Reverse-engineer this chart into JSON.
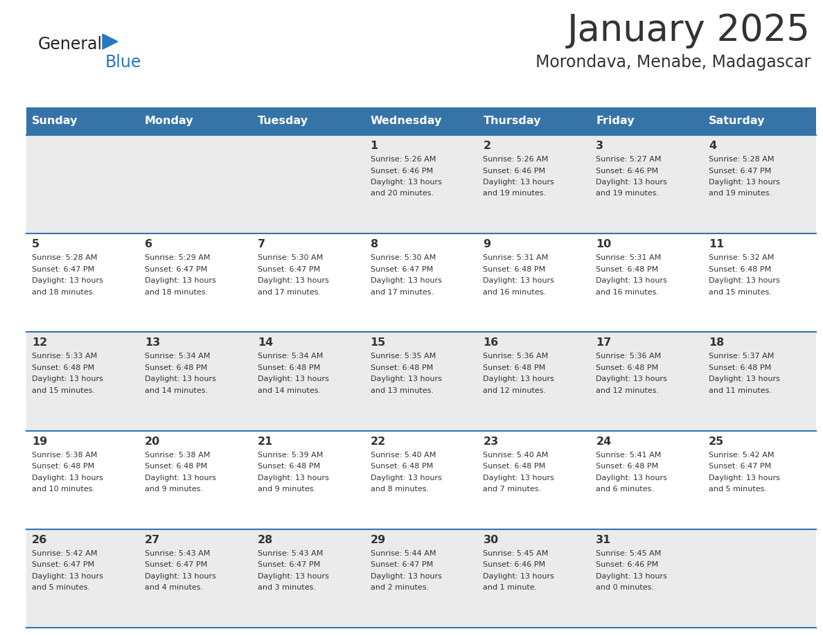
{
  "title": "January 2025",
  "subtitle": "Morondava, Menabe, Madagascar",
  "header_bg_color": "#3674a8",
  "header_text_color": "#ffffff",
  "weekdays": [
    "Sunday",
    "Monday",
    "Tuesday",
    "Wednesday",
    "Thursday",
    "Friday",
    "Saturday"
  ],
  "row_bg_even": "#ebebeb",
  "row_bg_odd": "#ffffff",
  "separator_color": "#3674a8",
  "text_color": "#333333",
  "day_number_color": "#333333",
  "logo_general_color": "#222222",
  "logo_blue_color": "#2878c0",
  "calendar": [
    [
      {
        "day": null
      },
      {
        "day": null
      },
      {
        "day": null
      },
      {
        "day": 1,
        "sunrise": "5:26 AM",
        "sunset": "6:46 PM",
        "daylight": "13 hours and 20 minutes"
      },
      {
        "day": 2,
        "sunrise": "5:26 AM",
        "sunset": "6:46 PM",
        "daylight": "13 hours and 19 minutes"
      },
      {
        "day": 3,
        "sunrise": "5:27 AM",
        "sunset": "6:46 PM",
        "daylight": "13 hours and 19 minutes"
      },
      {
        "day": 4,
        "sunrise": "5:28 AM",
        "sunset": "6:47 PM",
        "daylight": "13 hours and 19 minutes"
      }
    ],
    [
      {
        "day": 5,
        "sunrise": "5:28 AM",
        "sunset": "6:47 PM",
        "daylight": "13 hours and 18 minutes"
      },
      {
        "day": 6,
        "sunrise": "5:29 AM",
        "sunset": "6:47 PM",
        "daylight": "13 hours and 18 minutes"
      },
      {
        "day": 7,
        "sunrise": "5:30 AM",
        "sunset": "6:47 PM",
        "daylight": "13 hours and 17 minutes"
      },
      {
        "day": 8,
        "sunrise": "5:30 AM",
        "sunset": "6:47 PM",
        "daylight": "13 hours and 17 minutes"
      },
      {
        "day": 9,
        "sunrise": "5:31 AM",
        "sunset": "6:48 PM",
        "daylight": "13 hours and 16 minutes"
      },
      {
        "day": 10,
        "sunrise": "5:31 AM",
        "sunset": "6:48 PM",
        "daylight": "13 hours and 16 minutes"
      },
      {
        "day": 11,
        "sunrise": "5:32 AM",
        "sunset": "6:48 PM",
        "daylight": "13 hours and 15 minutes"
      }
    ],
    [
      {
        "day": 12,
        "sunrise": "5:33 AM",
        "sunset": "6:48 PM",
        "daylight": "13 hours and 15 minutes"
      },
      {
        "day": 13,
        "sunrise": "5:34 AM",
        "sunset": "6:48 PM",
        "daylight": "13 hours and 14 minutes"
      },
      {
        "day": 14,
        "sunrise": "5:34 AM",
        "sunset": "6:48 PM",
        "daylight": "13 hours and 14 minutes"
      },
      {
        "day": 15,
        "sunrise": "5:35 AM",
        "sunset": "6:48 PM",
        "daylight": "13 hours and 13 minutes"
      },
      {
        "day": 16,
        "sunrise": "5:36 AM",
        "sunset": "6:48 PM",
        "daylight": "13 hours and 12 minutes"
      },
      {
        "day": 17,
        "sunrise": "5:36 AM",
        "sunset": "6:48 PM",
        "daylight": "13 hours and 12 minutes"
      },
      {
        "day": 18,
        "sunrise": "5:37 AM",
        "sunset": "6:48 PM",
        "daylight": "13 hours and 11 minutes"
      }
    ],
    [
      {
        "day": 19,
        "sunrise": "5:38 AM",
        "sunset": "6:48 PM",
        "daylight": "13 hours and 10 minutes"
      },
      {
        "day": 20,
        "sunrise": "5:38 AM",
        "sunset": "6:48 PM",
        "daylight": "13 hours and 9 minutes"
      },
      {
        "day": 21,
        "sunrise": "5:39 AM",
        "sunset": "6:48 PM",
        "daylight": "13 hours and 9 minutes"
      },
      {
        "day": 22,
        "sunrise": "5:40 AM",
        "sunset": "6:48 PM",
        "daylight": "13 hours and 8 minutes"
      },
      {
        "day": 23,
        "sunrise": "5:40 AM",
        "sunset": "6:48 PM",
        "daylight": "13 hours and 7 minutes"
      },
      {
        "day": 24,
        "sunrise": "5:41 AM",
        "sunset": "6:48 PM",
        "daylight": "13 hours and 6 minutes"
      },
      {
        "day": 25,
        "sunrise": "5:42 AM",
        "sunset": "6:47 PM",
        "daylight": "13 hours and 5 minutes"
      }
    ],
    [
      {
        "day": 26,
        "sunrise": "5:42 AM",
        "sunset": "6:47 PM",
        "daylight": "13 hours and 5 minutes"
      },
      {
        "day": 27,
        "sunrise": "5:43 AM",
        "sunset": "6:47 PM",
        "daylight": "13 hours and 4 minutes"
      },
      {
        "day": 28,
        "sunrise": "5:43 AM",
        "sunset": "6:47 PM",
        "daylight": "13 hours and 3 minutes"
      },
      {
        "day": 29,
        "sunrise": "5:44 AM",
        "sunset": "6:47 PM",
        "daylight": "13 hours and 2 minutes"
      },
      {
        "day": 30,
        "sunrise": "5:45 AM",
        "sunset": "6:46 PM",
        "daylight": "13 hours and 1 minute"
      },
      {
        "day": 31,
        "sunrise": "5:45 AM",
        "sunset": "6:46 PM",
        "daylight": "13 hours and 0 minutes"
      },
      {
        "day": null
      }
    ]
  ]
}
